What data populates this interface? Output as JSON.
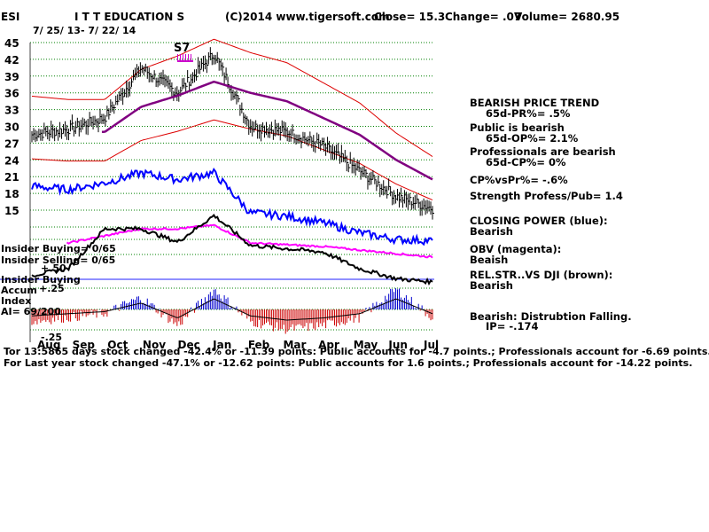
{
  "header": {
    "ticker": "ESI",
    "name": "I T T EDUCATION S",
    "copyright": "(C)2014 www.tigersoft.com",
    "close": "Close=  15.3",
    "change": "Change= .07",
    "volume": "Volume= 2680.95",
    "date_range": "7/ 25/ 13- 7/ 22/ 14"
  },
  "signal": {
    "label": "S7",
    "color": "#cc00cc"
  },
  "y_ticks": [
    "45",
    "42",
    "39",
    "36",
    "33",
    "30",
    "27",
    "24",
    "21",
    "18",
    "15"
  ],
  "months": [
    "Aug",
    "Sep",
    "Oct",
    "Nov",
    "Dec",
    "Jan",
    "Feb",
    "Mar",
    "Apr",
    "May",
    "Jun",
    "Jul"
  ],
  "insider": {
    "buying": "Insider Buying= 0/65",
    "selling": "Insider Selling= 0/65",
    "plus50": "+.50",
    "buying2": "Insider Buying",
    "accum": "Accum",
    "plus25": "+.25",
    "index": "Index",
    "ai": "AI= 69/200",
    "minus25": "-.25"
  },
  "right_panel": {
    "trend": "BEARISH PRICE TREND",
    "pr": "65d-PR%= .5%",
    "public": "Public is bearish",
    "op": "65d-OP%= 2.1%",
    "pros": "Professionals are bearish",
    "cp": "65d-CP%= 0%",
    "cpvspr": "CP%vsPr%= -.6%",
    "strength": "Strength Profess/Pub= 1.4",
    "closing_power": "CLOSING POWER (blue):",
    "cp_state": "Bearish",
    "obv": "OBV (magenta):",
    "obv_state": "Beaish",
    "relstr": "REL.STR..VS DJI (brown):",
    "relstr_state": "Bearish",
    "dist": "Bearish: Distrubtion Falling.",
    "ip": "IP= -.174"
  },
  "footer": {
    "line1_overlay": "Tor 13:5865 days stock changed -42.4% or -11.39 points:  Public accounts for -4.7 points.;  Professionals account for -6.69 points.",
    "line2": "For Last year stock changed -47.1% or -12.62 points:  Public accounts for  1.6 points.;  Professionals account for -14.22 points."
  },
  "colors": {
    "price": "#000000",
    "bands": "#dd0000",
    "ma65": "#800080",
    "closing_power": "#0000ff",
    "obv": "#ff00ff",
    "accum_pos": "#0000cc",
    "accum_neg": "#cc0000",
    "grid": "#008000"
  },
  "chart_data": {
    "type": "line",
    "title": "I T T EDUCATION S",
    "x": [
      "Aug",
      "Sep",
      "Oct",
      "Nov",
      "Dec",
      "Jan",
      "Feb",
      "Mar",
      "Apr",
      "May",
      "Jun",
      "Jul"
    ],
    "ylim": [
      15,
      45
    ],
    "series": [
      {
        "values": [
          28.5,
          29.5,
          31.5,
          40.5,
          36,
          43,
          30,
          29,
          26.5,
          22,
          17.5,
          15.3
        ]
      },
      {
        "values": [
          29.5,
          29,
          29,
          33.5,
          35.5,
          38,
          36,
          34.5,
          31.5,
          28.5,
          24,
          20.5
        ]
      }
    ]
  }
}
